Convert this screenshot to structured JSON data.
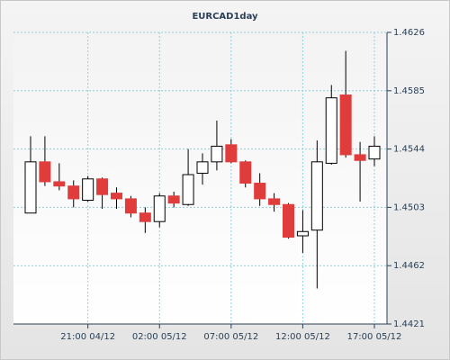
{
  "chart_data": {
    "type": "candlestick",
    "title": "EURCAD1day",
    "categories": [
      null,
      null,
      null,
      null,
      "21:00 04/12",
      null,
      null,
      null,
      null,
      "02:00 05/12",
      null,
      null,
      null,
      null,
      "07:00 05/12",
      null,
      null,
      null,
      null,
      "12:00 05/12",
      null,
      null,
      null,
      null,
      "17:00 05/12"
    ],
    "open": [
      1.4499,
      1.4535,
      1.4521,
      1.4518,
      1.4508,
      1.4523,
      1.4513,
      1.4509,
      1.4499,
      1.4493,
      1.4511,
      1.4505,
      1.4527,
      1.4535,
      1.4547,
      1.4535,
      1.452,
      1.4509,
      1.4505,
      1.4483,
      1.4487,
      1.4534,
      1.4582,
      1.454,
      1.4537
    ],
    "high": [
      1.4553,
      1.4553,
      1.4534,
      1.4522,
      1.4525,
      1.4524,
      1.4517,
      1.4511,
      1.4503,
      1.4513,
      1.4514,
      1.4544,
      1.4541,
      1.4564,
      1.4551,
      1.4536,
      1.4527,
      1.4513,
      1.4506,
      1.4501,
      1.455,
      1.4589,
      1.4613,
      1.4549,
      1.4553
    ],
    "low": [
      1.4499,
      1.4518,
      1.4515,
      1.4503,
      1.4507,
      1.4502,
      1.4502,
      1.4496,
      1.4485,
      1.4489,
      1.4503,
      1.4504,
      1.4519,
      1.4529,
      1.4534,
      1.4517,
      1.4504,
      1.45,
      1.4481,
      1.4471,
      1.4446,
      1.4533,
      1.4538,
      1.4507,
      1.4532
    ],
    "close": [
      1.4535,
      1.4521,
      1.4518,
      1.4509,
      1.4523,
      1.4512,
      1.4509,
      1.4499,
      1.4493,
      1.4511,
      1.4506,
      1.4526,
      1.4535,
      1.4546,
      1.4535,
      1.452,
      1.4509,
      1.4505,
      1.4482,
      1.4486,
      1.4535,
      1.458,
      1.454,
      1.4536,
      1.4546
    ],
    "up_color": "#ffffff",
    "down_color": "#e03c3c",
    "ylim": [
      1.4421,
      1.4626
    ],
    "yticks": [
      1.4421,
      1.4462,
      1.4503,
      1.4544,
      1.4585,
      1.4626
    ],
    "grid": true
  }
}
